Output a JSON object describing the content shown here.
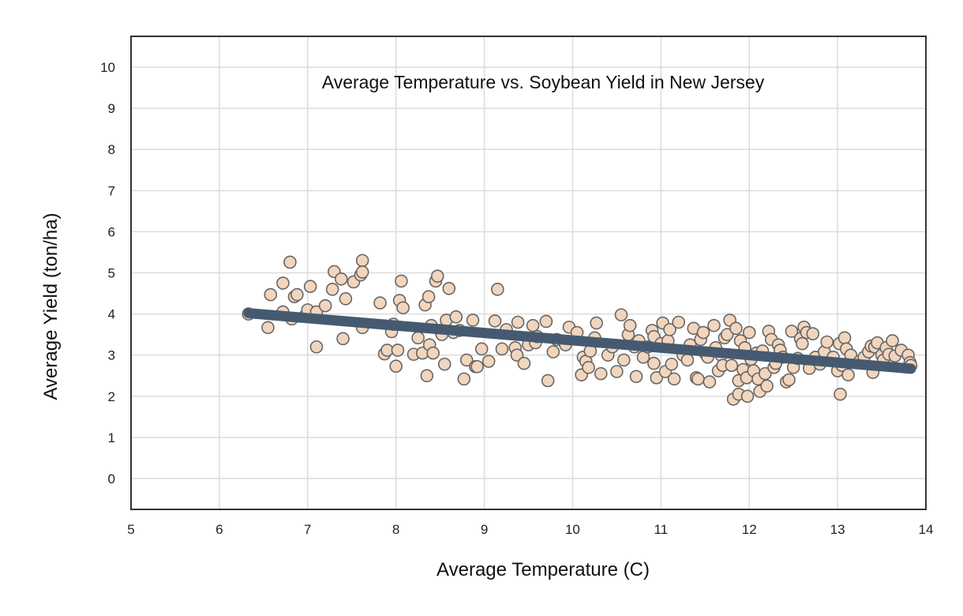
{
  "chart_data": {
    "type": "scatter",
    "title": "Average Temperature vs. Soybean Yield in New Jersey",
    "xlabel": "Average Temperature (C)",
    "ylabel": "Average Yield (ton/ha)",
    "xlim": [
      5,
      14
    ],
    "ylim": [
      -0.75,
      10.75
    ],
    "xticks": [
      "5",
      "6",
      "7",
      "8",
      "9",
      "10",
      "11",
      "12",
      "13",
      "14"
    ],
    "yticks": [
      "0",
      "1",
      "2",
      "3",
      "4",
      "5",
      "6",
      "7",
      "8",
      "9",
      "10"
    ],
    "grid": true,
    "legend": "none",
    "colors": {
      "points": "#f2d5bd",
      "point_stroke": "#666666",
      "trend": "#455a70",
      "grid": "#dcdcdc",
      "frame": "#333333"
    },
    "points": [
      [
        6.33,
        4.0
      ],
      [
        6.55,
        3.67
      ],
      [
        6.58,
        4.47
      ],
      [
        6.72,
        4.75
      ],
      [
        6.72,
        4.05
      ],
      [
        6.8,
        5.26
      ],
      [
        6.82,
        3.88
      ],
      [
        6.85,
        4.42
      ],
      [
        6.88,
        4.47
      ],
      [
        6.97,
        3.95
      ],
      [
        7.0,
        4.1
      ],
      [
        7.03,
        4.67
      ],
      [
        7.1,
        3.2
      ],
      [
        7.1,
        4.05
      ],
      [
        7.2,
        4.2
      ],
      [
        7.28,
        4.6
      ],
      [
        7.3,
        5.03
      ],
      [
        7.38,
        4.85
      ],
      [
        7.4,
        3.4
      ],
      [
        7.43,
        4.37
      ],
      [
        7.52,
        4.78
      ],
      [
        7.6,
        4.95
      ],
      [
        7.62,
        5.3
      ],
      [
        7.62,
        5.02
      ],
      [
        7.62,
        3.67
      ],
      [
        7.82,
        4.27
      ],
      [
        7.87,
        3.03
      ],
      [
        7.9,
        3.12
      ],
      [
        7.95,
        3.57
      ],
      [
        7.97,
        3.75
      ],
      [
        8.0,
        2.73
      ],
      [
        8.02,
        3.12
      ],
      [
        8.04,
        4.33
      ],
      [
        8.06,
        4.8
      ],
      [
        8.08,
        4.15
      ],
      [
        8.2,
        3.02
      ],
      [
        8.25,
        3.42
      ],
      [
        8.3,
        3.05
      ],
      [
        8.33,
        4.22
      ],
      [
        8.35,
        2.5
      ],
      [
        8.37,
        4.42
      ],
      [
        8.38,
        3.25
      ],
      [
        8.4,
        3.72
      ],
      [
        8.42,
        3.05
      ],
      [
        8.45,
        4.8
      ],
      [
        8.47,
        4.92
      ],
      [
        8.5,
        3.6
      ],
      [
        8.52,
        3.5
      ],
      [
        8.55,
        2.78
      ],
      [
        8.57,
        3.85
      ],
      [
        8.6,
        4.62
      ],
      [
        8.65,
        3.55
      ],
      [
        8.68,
        3.93
      ],
      [
        8.72,
        3.6
      ],
      [
        8.77,
        2.42
      ],
      [
        8.8,
        2.88
      ],
      [
        8.87,
        3.85
      ],
      [
        8.9,
        2.72
      ],
      [
        8.92,
        2.72
      ],
      [
        8.97,
        3.15
      ],
      [
        9.05,
        2.85
      ],
      [
        9.12,
        3.83
      ],
      [
        9.15,
        4.6
      ],
      [
        9.2,
        3.15
      ],
      [
        9.25,
        3.62
      ],
      [
        9.35,
        3.18
      ],
      [
        9.37,
        3.0
      ],
      [
        9.38,
        3.8
      ],
      [
        9.45,
        2.8
      ],
      [
        9.5,
        3.25
      ],
      [
        9.55,
        3.72
      ],
      [
        9.58,
        3.3
      ],
      [
        9.6,
        3.45
      ],
      [
        9.7,
        3.82
      ],
      [
        9.72,
        2.38
      ],
      [
        9.78,
        3.08
      ],
      [
        9.82,
        3.38
      ],
      [
        9.92,
        3.25
      ],
      [
        9.96,
        3.68
      ],
      [
        10.05,
        3.55
      ],
      [
        10.1,
        2.52
      ],
      [
        10.12,
        2.95
      ],
      [
        10.15,
        2.85
      ],
      [
        10.18,
        2.7
      ],
      [
        10.2,
        3.1
      ],
      [
        10.25,
        3.42
      ],
      [
        10.27,
        3.78
      ],
      [
        10.32,
        2.55
      ],
      [
        10.4,
        3.0
      ],
      [
        10.45,
        3.2
      ],
      [
        10.5,
        2.6
      ],
      [
        10.55,
        3.98
      ],
      [
        10.58,
        2.88
      ],
      [
        10.63,
        3.5
      ],
      [
        10.65,
        3.72
      ],
      [
        10.7,
        3.2
      ],
      [
        10.72,
        2.48
      ],
      [
        10.75,
        3.35
      ],
      [
        10.8,
        2.95
      ],
      [
        10.85,
        3.2
      ],
      [
        10.9,
        3.6
      ],
      [
        10.92,
        3.45
      ],
      [
        10.92,
        2.8
      ],
      [
        10.95,
        2.45
      ],
      [
        11.0,
        3.28
      ],
      [
        11.02,
        3.78
      ],
      [
        11.05,
        2.6
      ],
      [
        11.08,
        3.35
      ],
      [
        11.1,
        3.62
      ],
      [
        11.12,
        2.78
      ],
      [
        11.15,
        2.42
      ],
      [
        11.2,
        3.8
      ],
      [
        11.25,
        3.0
      ],
      [
        11.3,
        2.88
      ],
      [
        11.33,
        3.25
      ],
      [
        11.37,
        3.65
      ],
      [
        11.4,
        2.45
      ],
      [
        11.42,
        2.42
      ],
      [
        11.45,
        3.38
      ],
      [
        11.48,
        3.55
      ],
      [
        11.5,
        3.05
      ],
      [
        11.53,
        2.95
      ],
      [
        11.55,
        2.35
      ],
      [
        11.6,
        3.72
      ],
      [
        11.62,
        3.18
      ],
      [
        11.65,
        2.62
      ],
      [
        11.68,
        3.0
      ],
      [
        11.7,
        2.75
      ],
      [
        11.72,
        3.42
      ],
      [
        11.75,
        3.5
      ],
      [
        11.78,
        3.85
      ],
      [
        11.8,
        2.75
      ],
      [
        11.82,
        1.93
      ],
      [
        11.85,
        3.65
      ],
      [
        11.88,
        2.05
      ],
      [
        11.88,
        2.38
      ],
      [
        11.9,
        3.35
      ],
      [
        11.93,
        2.65
      ],
      [
        11.95,
        3.18
      ],
      [
        11.97,
        2.45
      ],
      [
        11.98,
        2.0
      ],
      [
        12.0,
        3.55
      ],
      [
        12.02,
        2.9
      ],
      [
        12.05,
        2.62
      ],
      [
        12.08,
        3.05
      ],
      [
        12.1,
        2.42
      ],
      [
        12.12,
        2.12
      ],
      [
        12.15,
        3.1
      ],
      [
        12.18,
        2.55
      ],
      [
        12.2,
        2.25
      ],
      [
        12.22,
        3.58
      ],
      [
        12.25,
        3.38
      ],
      [
        12.28,
        2.7
      ],
      [
        12.3,
        2.8
      ],
      [
        12.33,
        3.25
      ],
      [
        12.35,
        3.12
      ],
      [
        12.38,
        2.95
      ],
      [
        12.42,
        2.35
      ],
      [
        12.45,
        2.4
      ],
      [
        12.48,
        3.58
      ],
      [
        12.5,
        2.7
      ],
      [
        12.55,
        2.92
      ],
      [
        12.58,
        3.4
      ],
      [
        12.6,
        3.28
      ],
      [
        12.62,
        3.68
      ],
      [
        12.65,
        3.55
      ],
      [
        12.68,
        2.68
      ],
      [
        12.72,
        3.52
      ],
      [
        12.75,
        2.95
      ],
      [
        12.8,
        2.78
      ],
      [
        12.85,
        3.08
      ],
      [
        12.88,
        3.32
      ],
      [
        12.95,
        2.95
      ],
      [
        13.0,
        2.62
      ],
      [
        13.02,
        3.28
      ],
      [
        13.03,
        2.05
      ],
      [
        13.05,
        2.75
      ],
      [
        13.08,
        3.42
      ],
      [
        13.1,
        3.15
      ],
      [
        13.12,
        2.52
      ],
      [
        13.15,
        3.0
      ],
      [
        13.25,
        2.85
      ],
      [
        13.3,
        2.95
      ],
      [
        13.35,
        3.08
      ],
      [
        13.38,
        3.22
      ],
      [
        13.4,
        2.58
      ],
      [
        13.42,
        3.2
      ],
      [
        13.45,
        3.3
      ],
      [
        13.5,
        3.0
      ],
      [
        13.52,
        2.88
      ],
      [
        13.55,
        3.18
      ],
      [
        13.58,
        3.02
      ],
      [
        13.62,
        3.35
      ],
      [
        13.65,
        2.98
      ],
      [
        13.72,
        3.12
      ],
      [
        13.8,
        3.0
      ],
      [
        13.82,
        2.82
      ],
      [
        13.83,
        2.75
      ]
    ],
    "trendline": [
      [
        6.33,
        4.02
      ],
      [
        13.83,
        2.67
      ]
    ]
  }
}
